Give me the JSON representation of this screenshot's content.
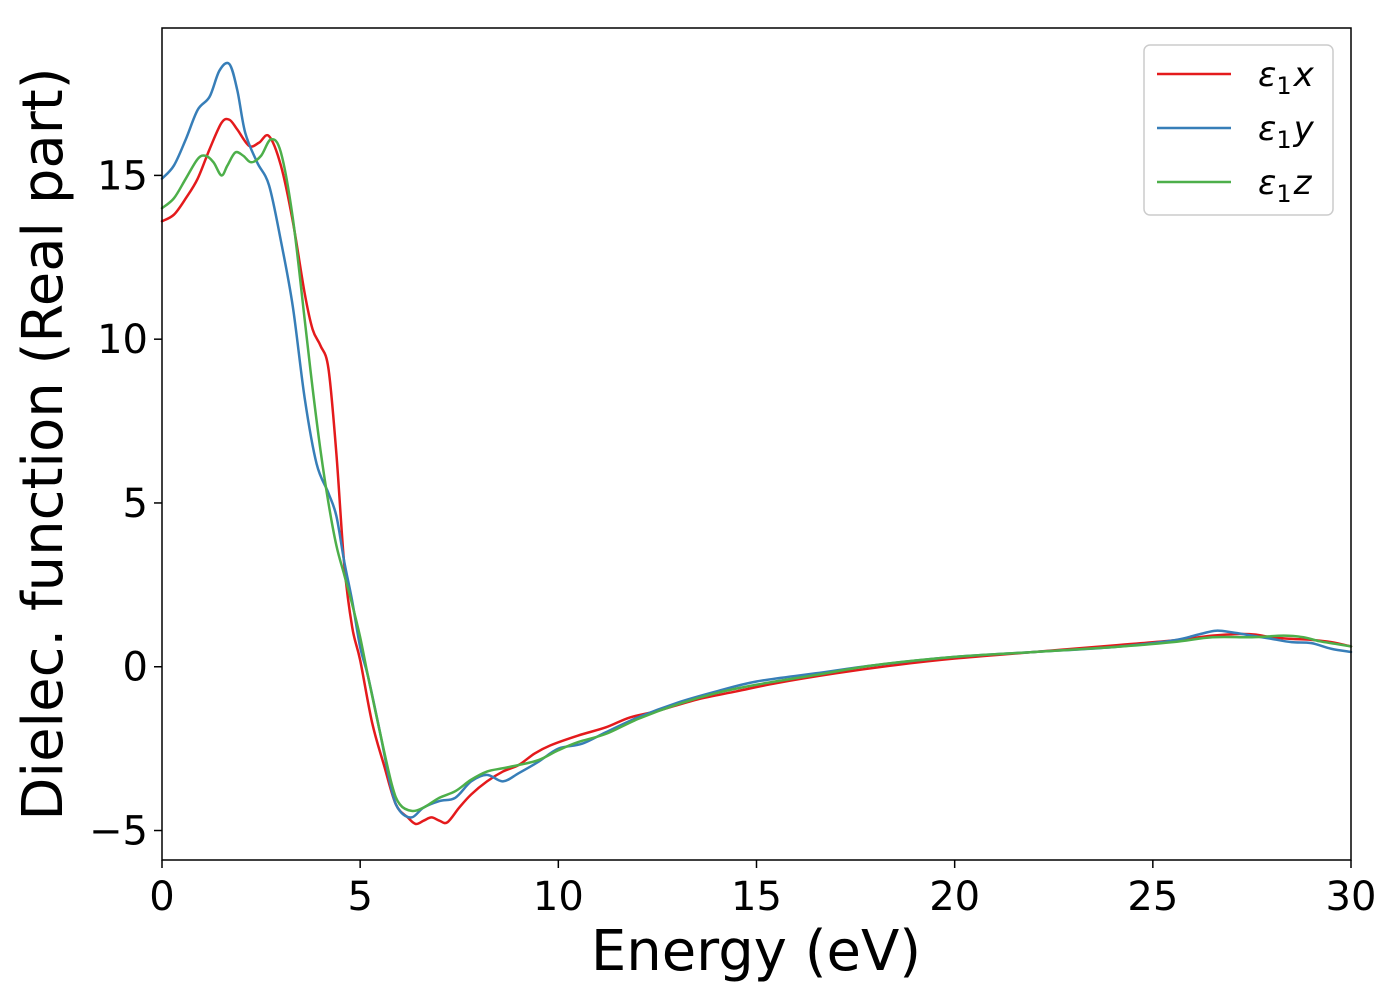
{
  "chart_data": {
    "type": "line",
    "title": "",
    "xlabel": "Energy (eV)",
    "ylabel": "Dielec. function (Real part)",
    "xlim": [
      0,
      30
    ],
    "ylim": [
      -5.9,
      19.5
    ],
    "xticks": [
      0,
      5,
      10,
      15,
      20,
      25,
      30
    ],
    "xtick_labels": [
      "0",
      "5",
      "10",
      "15",
      "20",
      "25",
      "30"
    ],
    "yticks": [
      -5,
      0,
      5,
      10,
      15
    ],
    "ytick_labels": [
      "−5",
      "0",
      "5",
      "10",
      "15"
    ],
    "grid": false,
    "legend_position": "top-right",
    "series": [
      {
        "name": "ε₁x",
        "legend": {
          "eps": "ε",
          "sub": "1",
          "axis": "x"
        },
        "color": "#e41a1c",
        "x": [
          0,
          0.3,
          0.6,
          0.9,
          1.2,
          1.5,
          1.7,
          1.9,
          2.2,
          2.45,
          2.7,
          3.0,
          3.3,
          3.6,
          3.8,
          4.0,
          4.2,
          4.4,
          4.6,
          4.8,
          5.0,
          5.3,
          5.6,
          5.9,
          6.2,
          6.4,
          6.6,
          6.8,
          7.0,
          7.2,
          7.5,
          7.8,
          8.2,
          8.6,
          9.0,
          9.4,
          9.8,
          10.5,
          11.2,
          11.8,
          12.5,
          13.5,
          14.5,
          15.5,
          17,
          18.5,
          20,
          22,
          24,
          25.5,
          26.5,
          27.2,
          27.6,
          28.0,
          28.5,
          29.0,
          29.5,
          30.0
        ],
        "y": [
          13.6,
          13.8,
          14.3,
          14.9,
          15.8,
          16.6,
          16.7,
          16.4,
          15.9,
          16.0,
          16.2,
          15.3,
          13.6,
          11.4,
          10.3,
          9.8,
          9.1,
          6.5,
          3.1,
          1.2,
          0.2,
          -1.7,
          -3.0,
          -4.2,
          -4.6,
          -4.8,
          -4.7,
          -4.6,
          -4.7,
          -4.75,
          -4.3,
          -3.9,
          -3.5,
          -3.2,
          -3.0,
          -2.65,
          -2.4,
          -2.1,
          -1.85,
          -1.55,
          -1.35,
          -1.0,
          -0.75,
          -0.5,
          -0.2,
          0.05,
          0.25,
          0.45,
          0.65,
          0.8,
          0.95,
          1.0,
          0.98,
          0.9,
          0.85,
          0.82,
          0.75,
          0.62
        ]
      },
      {
        "name": "ε₁y",
        "legend": {
          "eps": "ε",
          "sub": "1",
          "axis": "y"
        },
        "color": "#377eb8",
        "x": [
          0,
          0.3,
          0.6,
          0.9,
          1.2,
          1.45,
          1.7,
          1.9,
          2.1,
          2.4,
          2.7,
          3.0,
          3.3,
          3.6,
          3.9,
          4.2,
          4.4,
          4.6,
          4.8,
          5.0,
          5.2,
          5.5,
          5.8,
          6.0,
          6.3,
          6.6,
          7.0,
          7.4,
          7.8,
          8.2,
          8.6,
          9.0,
          9.5,
          10.0,
          10.6,
          11.2,
          12.0,
          13.0,
          14.0,
          15.0,
          16.5,
          18,
          20,
          22,
          24,
          25.5,
          26.2,
          26.6,
          27.0,
          27.5,
          28.0,
          28.5,
          29.0,
          29.5,
          30.0
        ],
        "y": [
          14.9,
          15.3,
          16.1,
          17.0,
          17.4,
          18.2,
          18.4,
          17.6,
          16.3,
          15.4,
          14.7,
          13.0,
          11.0,
          8.2,
          6.2,
          5.3,
          4.6,
          3.2,
          2.0,
          0.6,
          -0.3,
          -2.0,
          -3.8,
          -4.4,
          -4.6,
          -4.3,
          -4.1,
          -4.0,
          -3.5,
          -3.3,
          -3.5,
          -3.25,
          -2.9,
          -2.5,
          -2.35,
          -2.0,
          -1.55,
          -1.1,
          -0.75,
          -0.45,
          -0.2,
          0.05,
          0.3,
          0.45,
          0.6,
          0.8,
          1.0,
          1.1,
          1.05,
          0.95,
          0.85,
          0.75,
          0.72,
          0.55,
          0.45
        ]
      },
      {
        "name": "ε₁z",
        "legend": {
          "eps": "ε",
          "sub": "1",
          "axis": "z"
        },
        "color": "#4daf4a",
        "x": [
          0,
          0.3,
          0.6,
          0.9,
          1.1,
          1.3,
          1.5,
          1.65,
          1.85,
          2.05,
          2.25,
          2.5,
          2.75,
          3.0,
          3.3,
          3.6,
          3.8,
          4.0,
          4.2,
          4.4,
          4.6,
          4.8,
          5.0,
          5.2,
          5.5,
          5.8,
          6.0,
          6.3,
          6.6,
          7.0,
          7.4,
          7.8,
          8.2,
          8.6,
          9.0,
          9.5,
          10.0,
          10.5,
          11.2,
          12.0,
          13.0,
          14.0,
          15.0,
          16.5,
          18,
          20,
          22,
          24,
          25.5,
          26.5,
          27.5,
          28.3,
          28.8,
          29.2,
          29.6,
          30.0
        ],
        "y": [
          14.0,
          14.3,
          14.9,
          15.5,
          15.6,
          15.4,
          15.0,
          15.3,
          15.7,
          15.6,
          15.4,
          15.6,
          16.1,
          15.7,
          13.7,
          10.6,
          8.5,
          6.6,
          5.0,
          3.7,
          2.8,
          1.9,
          0.9,
          -0.3,
          -2.0,
          -3.6,
          -4.2,
          -4.4,
          -4.3,
          -4.0,
          -3.8,
          -3.45,
          -3.2,
          -3.1,
          -3.0,
          -2.85,
          -2.55,
          -2.3,
          -2.05,
          -1.6,
          -1.15,
          -0.8,
          -0.55,
          -0.25,
          0.05,
          0.3,
          0.45,
          0.6,
          0.75,
          0.9,
          0.9,
          0.95,
          0.9,
          0.78,
          0.7,
          0.62
        ]
      }
    ]
  }
}
